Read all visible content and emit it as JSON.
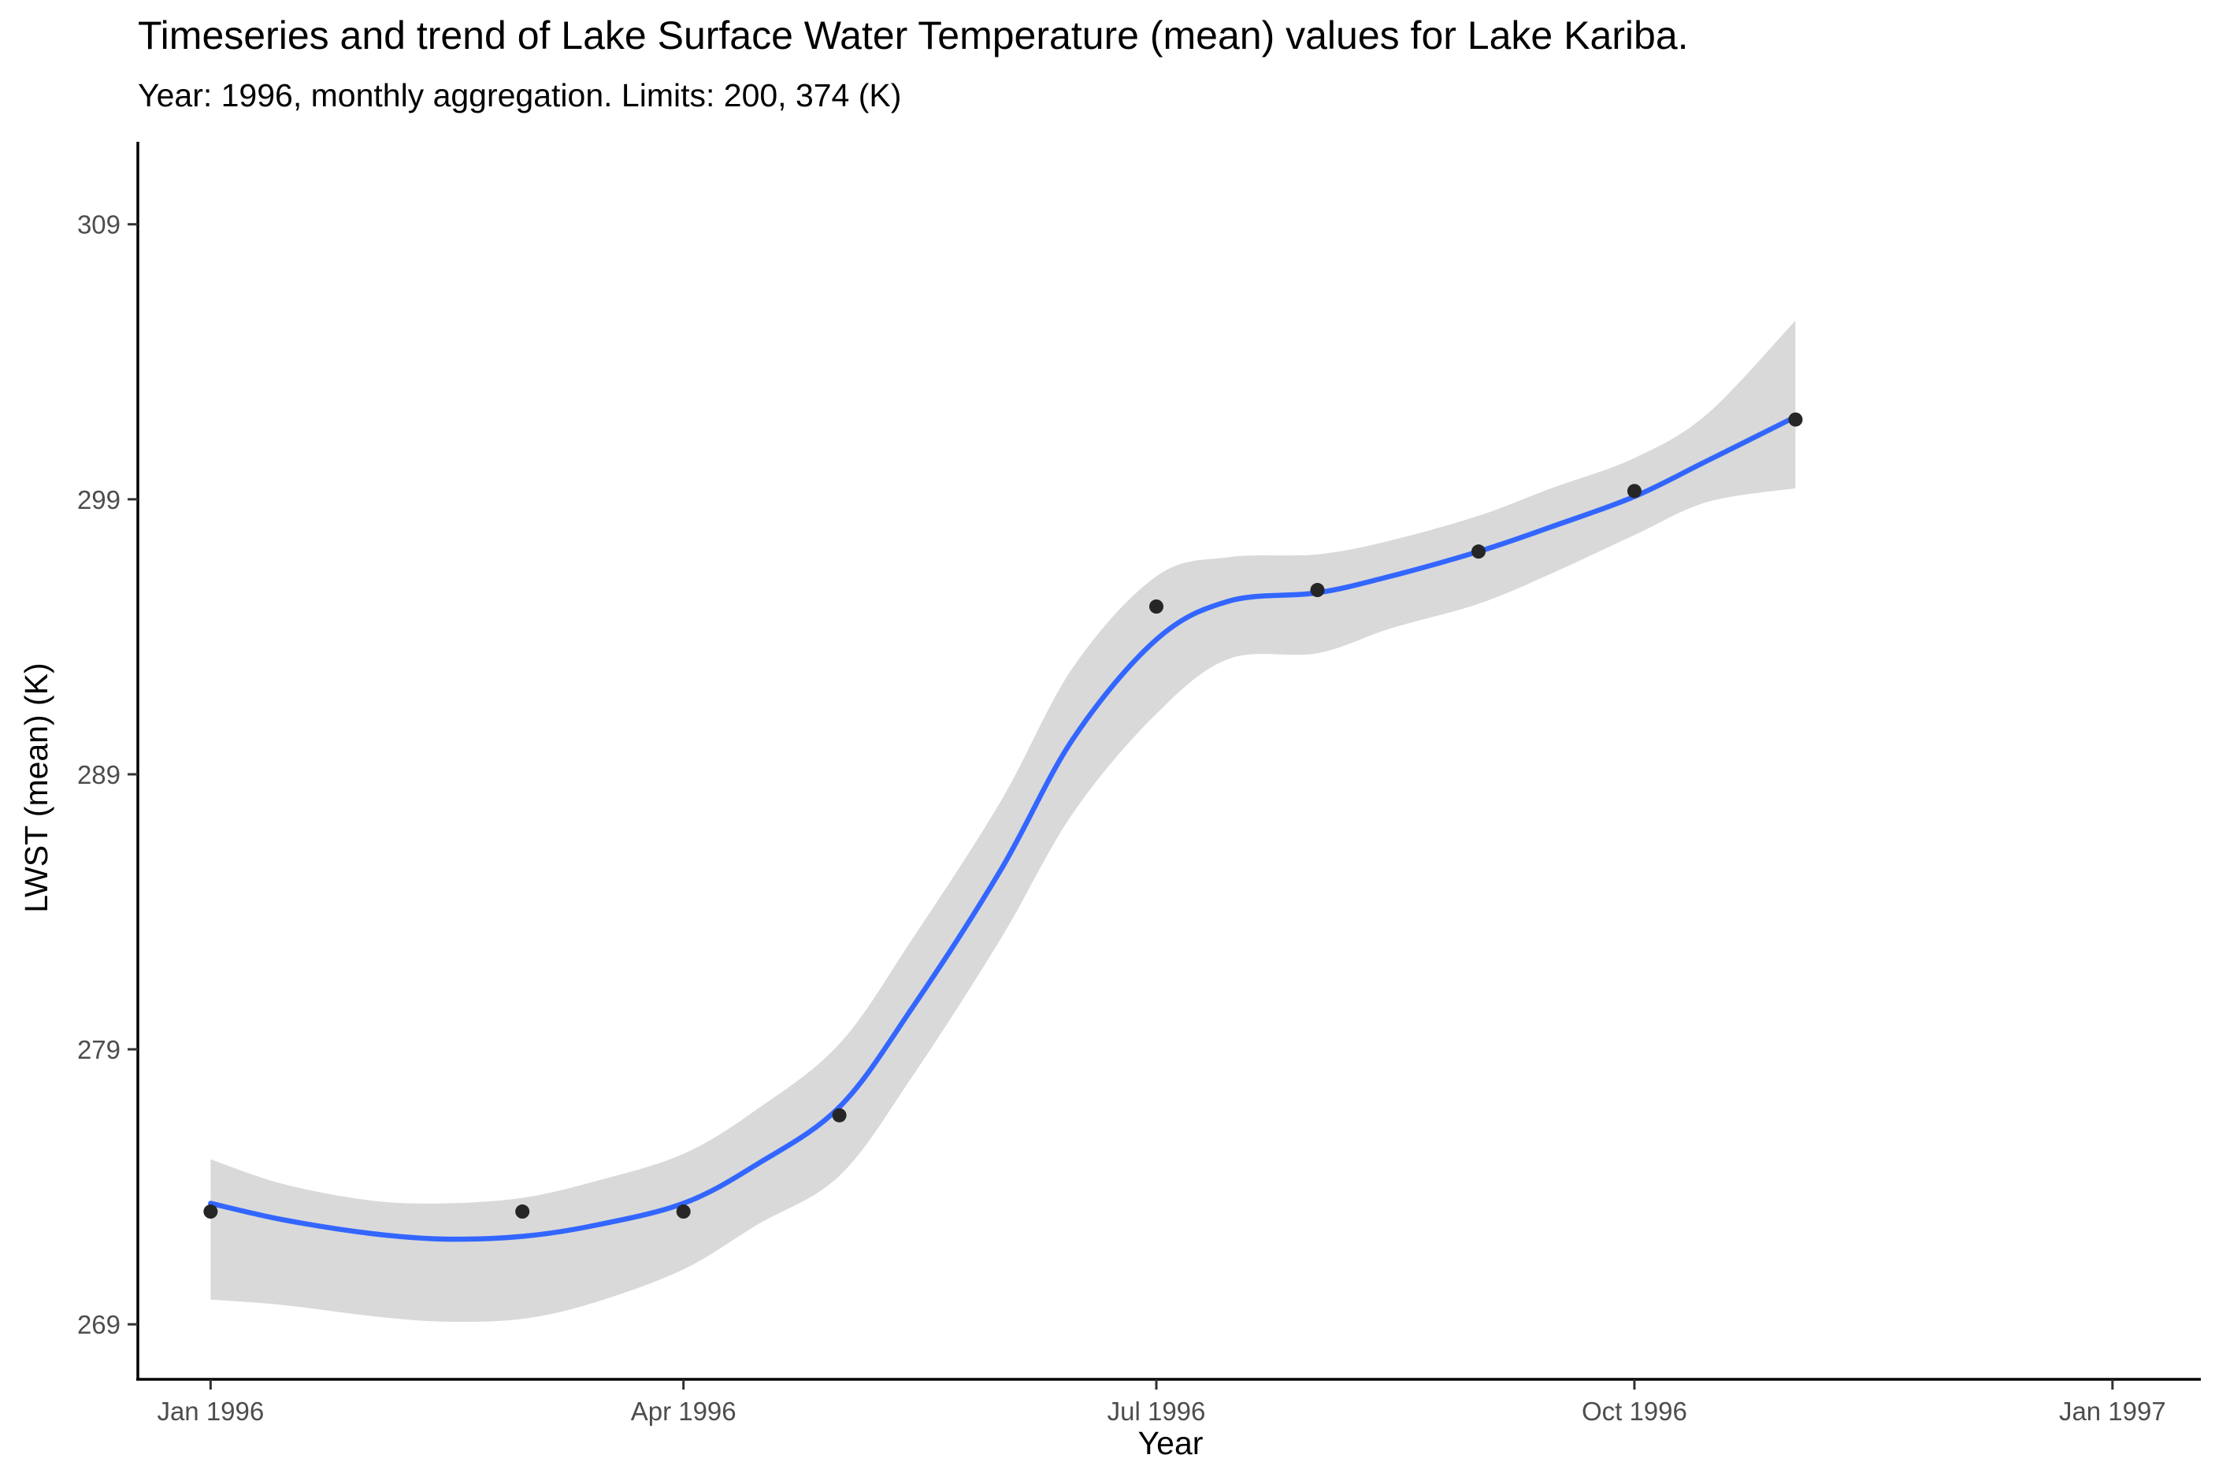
{
  "chart_data": {
    "type": "line",
    "title": "Timeseries and trend of Lake Surface Water Temperature (mean) values for Lake Kariba.",
    "subtitle": "Year: 1996, monthly aggregation. Limits: 200, 374 (K)",
    "xlabel": "Year",
    "ylabel": "LWST (mean) (K)",
    "x_ticks": [
      "Jan 1996",
      "Apr 1996",
      "Jul 1996",
      "Oct 1996",
      "Jan 1997"
    ],
    "y_ticks": [
      "269",
      "279",
      "289",
      "299",
      "309"
    ],
    "ylim": [
      267,
      312
    ],
    "xlim": [
      "1995-12-18",
      "1997-01-18"
    ],
    "grid": false,
    "points": [
      {
        "x": "1996-01-01",
        "y": 273.1
      },
      {
        "x": "1996-03-01",
        "y": 273.1
      },
      {
        "x": "1996-04-01",
        "y": 273.1
      },
      {
        "x": "1996-05-01",
        "y": 276.6
      },
      {
        "x": "1996-07-01",
        "y": 295.1
      },
      {
        "x": "1996-08-01",
        "y": 295.7
      },
      {
        "x": "1996-09-01",
        "y": 297.1
      },
      {
        "x": "1996-10-01",
        "y": 299.3
      },
      {
        "x": "1996-11-01",
        "y": 301.9
      }
    ],
    "trend": [
      {
        "x": "1996-01-01",
        "y": 273.4
      },
      {
        "x": "1996-01-15",
        "y": 272.8
      },
      {
        "x": "1996-02-01",
        "y": 272.3
      },
      {
        "x": "1996-02-15",
        "y": 272.1
      },
      {
        "x": "1996-03-01",
        "y": 272.2
      },
      {
        "x": "1996-03-15",
        "y": 272.6
      },
      {
        "x": "1996-04-01",
        "y": 273.4
      },
      {
        "x": "1996-04-15",
        "y": 274.8
      },
      {
        "x": "1996-05-01",
        "y": 276.9
      },
      {
        "x": "1996-05-15",
        "y": 280.5
      },
      {
        "x": "1996-06-01",
        "y": 285.5
      },
      {
        "x": "1996-06-15",
        "y": 290.3
      },
      {
        "x": "1996-07-01",
        "y": 293.9
      },
      {
        "x": "1996-07-15",
        "y": 295.3
      },
      {
        "x": "1996-08-01",
        "y": 295.6
      },
      {
        "x": "1996-08-15",
        "y": 296.2
      },
      {
        "x": "1996-09-01",
        "y": 297.1
      },
      {
        "x": "1996-09-15",
        "y": 298.0
      },
      {
        "x": "1996-10-01",
        "y": 299.1
      },
      {
        "x": "1996-10-15",
        "y": 300.4
      },
      {
        "x": "1996-11-01",
        "y": 302.0
      }
    ],
    "band_upper": [
      {
        "x": "1996-01-01",
        "y": 275.0
      },
      {
        "x": "1996-01-15",
        "y": 274.1
      },
      {
        "x": "1996-02-01",
        "y": 273.5
      },
      {
        "x": "1996-02-15",
        "y": 273.4
      },
      {
        "x": "1996-03-01",
        "y": 273.6
      },
      {
        "x": "1996-03-15",
        "y": 274.2
      },
      {
        "x": "1996-04-01",
        "y": 275.2
      },
      {
        "x": "1996-04-15",
        "y": 276.8
      },
      {
        "x": "1996-05-01",
        "y": 279.2
      },
      {
        "x": "1996-05-15",
        "y": 283.0
      },
      {
        "x": "1996-06-01",
        "y": 288.0
      },
      {
        "x": "1996-06-15",
        "y": 292.9
      },
      {
        "x": "1996-07-01",
        "y": 296.2
      },
      {
        "x": "1996-07-15",
        "y": 296.9
      },
      {
        "x": "1996-08-01",
        "y": 297.0
      },
      {
        "x": "1996-08-15",
        "y": 297.5
      },
      {
        "x": "1996-09-01",
        "y": 298.4
      },
      {
        "x": "1996-09-15",
        "y": 299.4
      },
      {
        "x": "1996-10-01",
        "y": 300.5
      },
      {
        "x": "1996-10-15",
        "y": 302.1
      },
      {
        "x": "1996-11-01",
        "y": 305.5
      }
    ],
    "band_lower": [
      {
        "x": "1996-01-01",
        "y": 269.9
      },
      {
        "x": "1996-01-15",
        "y": 269.7
      },
      {
        "x": "1996-02-01",
        "y": 269.3
      },
      {
        "x": "1996-02-15",
        "y": 269.1
      },
      {
        "x": "1996-03-01",
        "y": 269.2
      },
      {
        "x": "1996-03-15",
        "y": 269.8
      },
      {
        "x": "1996-04-01",
        "y": 271.0
      },
      {
        "x": "1996-04-15",
        "y": 272.6
      },
      {
        "x": "1996-05-01",
        "y": 274.4
      },
      {
        "x": "1996-05-15",
        "y": 278.0
      },
      {
        "x": "1996-06-01",
        "y": 283.0
      },
      {
        "x": "1996-06-15",
        "y": 287.6
      },
      {
        "x": "1996-07-01",
        "y": 291.2
      },
      {
        "x": "1996-07-15",
        "y": 293.2
      },
      {
        "x": "1996-08-01",
        "y": 293.4
      },
      {
        "x": "1996-08-15",
        "y": 294.3
      },
      {
        "x": "1996-09-01",
        "y": 295.2
      },
      {
        "x": "1996-09-15",
        "y": 296.3
      },
      {
        "x": "1996-10-01",
        "y": 297.7
      },
      {
        "x": "1996-10-15",
        "y": 298.9
      },
      {
        "x": "1996-11-01",
        "y": 299.4
      }
    ],
    "colors": {
      "trend": "#3366ff",
      "band": "#d9d9d9",
      "points": "#262626",
      "axis": "#000000",
      "tick_text": "#4d4d4d"
    }
  }
}
